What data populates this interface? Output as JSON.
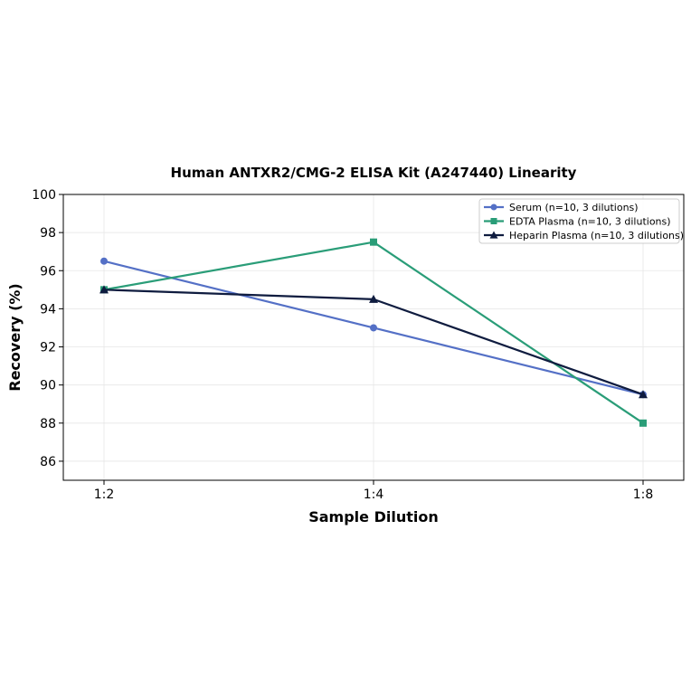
{
  "chart_data": {
    "type": "line",
    "title": "Human ANTXR2/CMG-2 ELISA Kit (A247440) Linearity",
    "xlabel": "Sample Dilution",
    "ylabel": "Recovery (%)",
    "categories": [
      "1:2",
      "1:4",
      "1:8"
    ],
    "ylim": [
      85,
      100
    ],
    "yticks": [
      86,
      88,
      90,
      92,
      94,
      96,
      98,
      100
    ],
    "grid": true,
    "legend_position": "top-right",
    "series": [
      {
        "name": "Serum (n=10, 3 dilutions)",
        "values": [
          96.5,
          93.0,
          89.5
        ],
        "color": "#5470c6",
        "marker": "circle"
      },
      {
        "name": "EDTA Plasma (n=10, 3 dilutions)",
        "values": [
          95.0,
          97.5,
          88.0
        ],
        "color": "#2a9d78",
        "marker": "square"
      },
      {
        "name": "Heparin Plasma (n=10, 3 dilutions)",
        "values": [
          95.0,
          94.5,
          89.5
        ],
        "color": "#0f1c3f",
        "marker": "triangle"
      }
    ]
  }
}
